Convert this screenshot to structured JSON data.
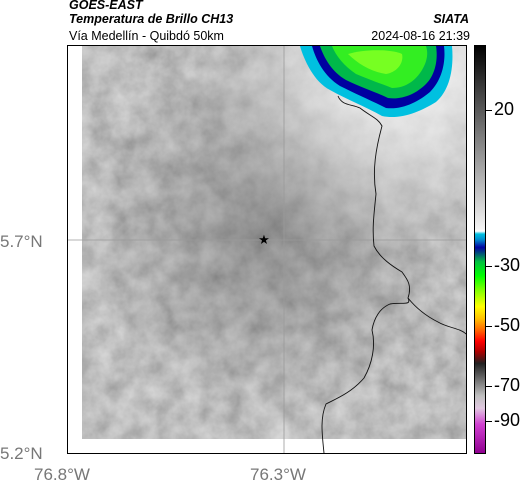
{
  "header": {
    "satellite": "GOES-EAST",
    "product": "Temperatura de Brillo CH13",
    "region": "Vía Medellín - Quibdó 50km",
    "agency": "SIATA",
    "timestamp": "2024-08-16 21:39"
  },
  "map": {
    "lat_ticks": [
      "5.7°N",
      "5.2°N"
    ],
    "lon_ticks": [
      "76.8°W",
      "76.3°W"
    ],
    "marker_icon": "star-icon"
  },
  "colorbar": {
    "labels": [
      "20",
      "-30",
      "-50",
      "-70",
      "-90"
    ]
  }
}
